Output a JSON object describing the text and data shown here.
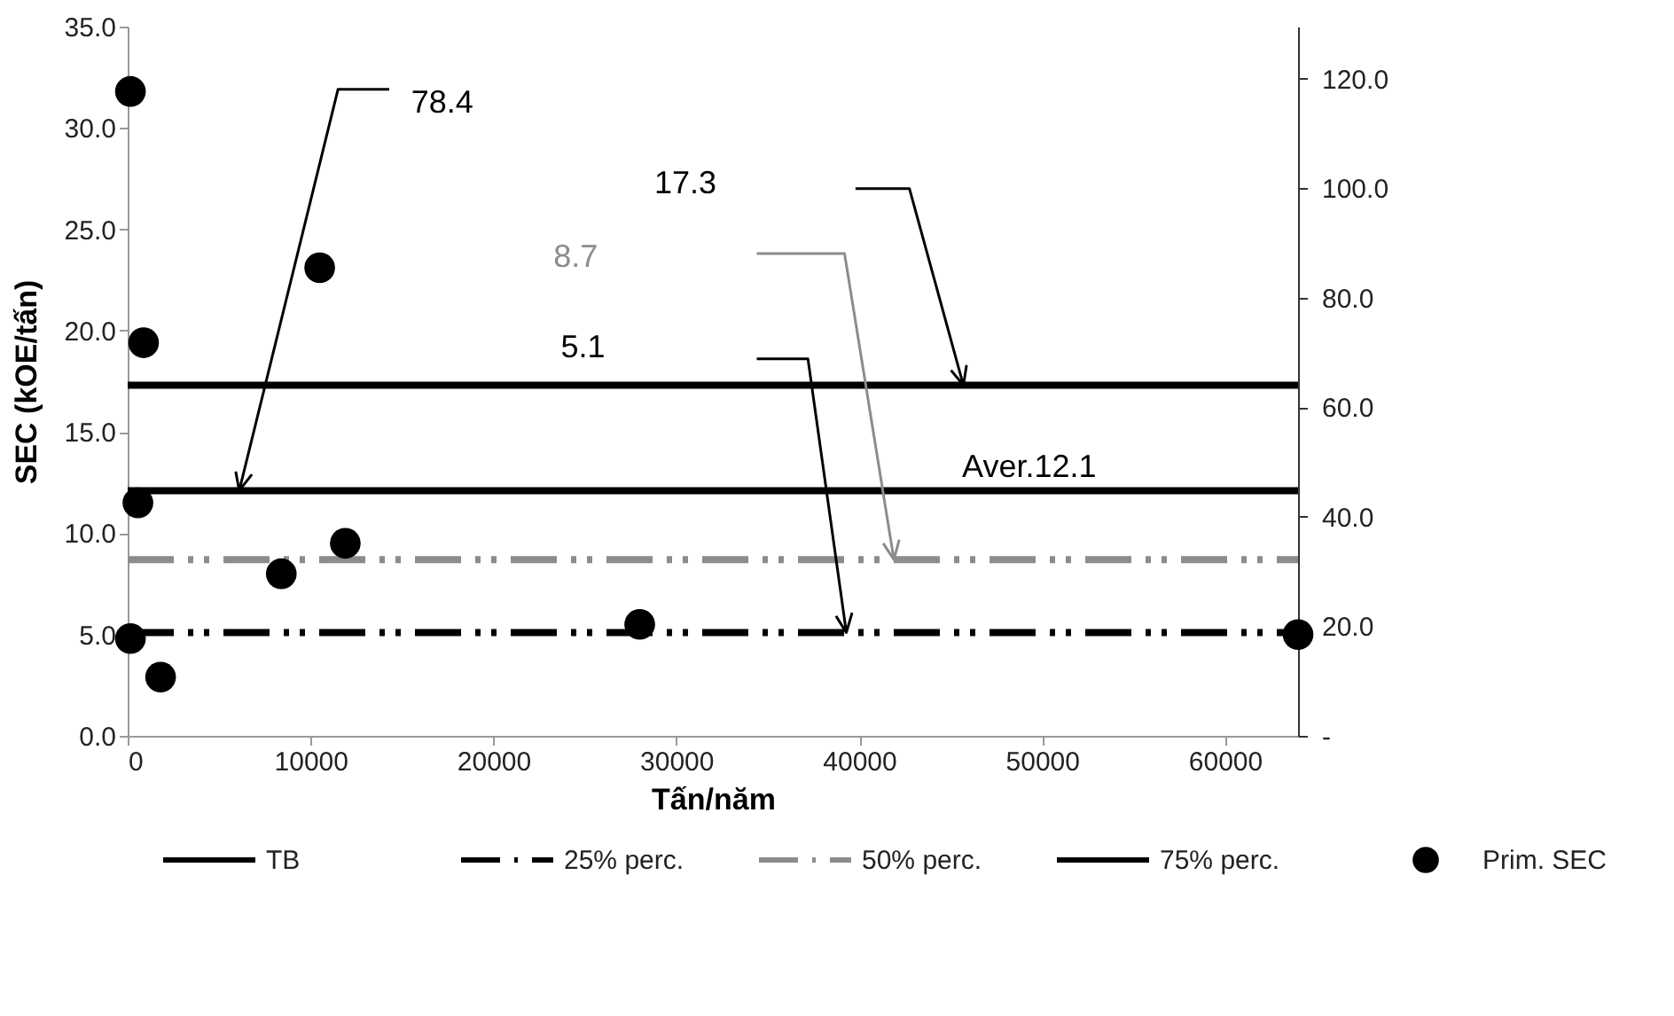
{
  "chart_data": {
    "type": "scatter",
    "xlabel": "Tấn/năm",
    "ylabel": "SEC (kOE/tấn)",
    "xlim": [
      0,
      64000
    ],
    "xticks": [
      0,
      10000,
      20000,
      30000,
      40000,
      50000,
      60000
    ],
    "ylim": [
      0,
      35
    ],
    "yticks": [
      {
        "value": 0,
        "label": "0.0"
      },
      {
        "value": 5,
        "label": "5.0"
      },
      {
        "value": 10,
        "label": "10.0"
      },
      {
        "value": 15,
        "label": "15.0"
      },
      {
        "value": 20,
        "label": "20.0"
      },
      {
        "value": 25,
        "label": "25.0"
      },
      {
        "value": 30,
        "label": "30.0"
      },
      {
        "value": 35,
        "label": "35.0"
      }
    ],
    "y2lim": [
      0,
      129.5
    ],
    "y2ticks": [
      {
        "value": 0,
        "label": "-"
      },
      {
        "value": 20,
        "label": "20.0"
      },
      {
        "value": 40,
        "label": "40.0"
      },
      {
        "value": 60,
        "label": "60.0"
      },
      {
        "value": 80,
        "label": "80.0"
      },
      {
        "value": 100,
        "label": "100.0"
      },
      {
        "value": 120,
        "label": "120.0"
      }
    ],
    "grid": false,
    "legend": "bottom",
    "series": [
      {
        "name": "TB",
        "type": "line",
        "color": "#000000",
        "line_style": "solid",
        "marker": "none",
        "x": [
          0,
          64000
        ],
        "values": [
          12.1,
          12.1
        ]
      },
      {
        "name": "25% perc.",
        "type": "line",
        "color": "#000000",
        "line_style": "dashed",
        "marker": "none",
        "x": [
          0,
          64000
        ],
        "values": [
          5.1,
          5.1
        ]
      },
      {
        "name": "50% perc.",
        "type": "line",
        "color": "#8c8c8c",
        "line_style": "dashed",
        "marker": "none",
        "x": [
          0,
          64000
        ],
        "values": [
          8.7,
          8.7
        ]
      },
      {
        "name": "75% perc.",
        "type": "line",
        "color": "#000000",
        "line_style": "solid",
        "marker": "none",
        "x": [
          0,
          64000
        ],
        "values": [
          17.3,
          17.3
        ]
      },
      {
        "name": "Prim. SEC",
        "type": "scatter",
        "color": "#000000",
        "marker": "circle",
        "x": [
          150,
          870,
          10500,
          560,
          11900,
          8400,
          28000,
          150,
          1800,
          64000
        ],
        "values": [
          31.8,
          19.4,
          23.1,
          11.5,
          9.5,
          8.0,
          5.5,
          4.8,
          2.9,
          5.0
        ]
      }
    ],
    "annotations": [
      "78.4",
      "17.3",
      "8.7",
      "5.1",
      "Aver.12.1"
    ]
  }
}
